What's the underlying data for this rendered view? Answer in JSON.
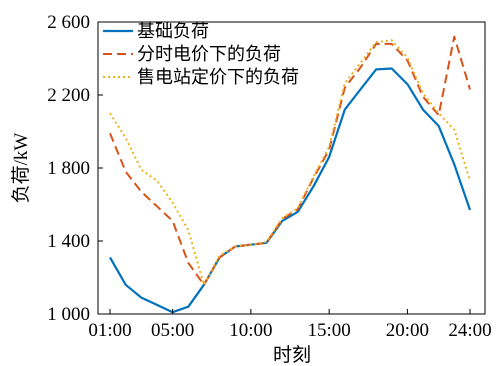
{
  "chart_data": {
    "type": "line",
    "x": [
      "01:00",
      "02:00",
      "03:00",
      "04:00",
      "05:00",
      "06:00",
      "07:00",
      "08:00",
      "09:00",
      "10:00",
      "11:00",
      "12:00",
      "13:00",
      "14:00",
      "15:00",
      "16:00",
      "17:00",
      "18:00",
      "19:00",
      "20:00",
      "21:00",
      "22:00",
      "23:00",
      "24:00"
    ],
    "xticks": [
      "01:00",
      "05:00",
      "10:00",
      "15:00",
      "20:00",
      "24:00"
    ],
    "yticks": [
      1000,
      1400,
      1800,
      2200,
      2600
    ],
    "ytick_labels": [
      "1 000",
      "1 400",
      "1 800",
      "2 200",
      "2 600"
    ],
    "ylim": [
      1000,
      2600
    ],
    "xlabel": "时刻",
    "ylabel": "负荷/kW",
    "legend": "top-left",
    "grid": false,
    "series": [
      {
        "name": "基础负荷",
        "line_style": "solid",
        "color": "#0072BD",
        "values": [
          1310,
          1160,
          1090,
          1050,
          1010,
          1040,
          1160,
          1310,
          1370,
          1380,
          1390,
          1510,
          1560,
          1700,
          1860,
          2120,
          2230,
          2340,
          2345,
          2260,
          2120,
          2030,
          1820,
          1570
        ]
      },
      {
        "name": "分时电价下的负荷",
        "line_style": "dashed",
        "color": "#D95319",
        "values": [
          1990,
          1780,
          1670,
          1590,
          1510,
          1280,
          1160,
          1310,
          1370,
          1380,
          1390,
          1520,
          1575,
          1745,
          1900,
          2240,
          2350,
          2480,
          2480,
          2390,
          2190,
          2090,
          2520,
          2230
        ]
      },
      {
        "name": "售电站定价下的负荷",
        "line_style": "dotted",
        "color": "#EDB120",
        "values": [
          2100,
          1965,
          1790,
          1730,
          1610,
          1460,
          1160,
          1320,
          1370,
          1380,
          1395,
          1525,
          1580,
          1755,
          1915,
          2265,
          2375,
          2490,
          2500,
          2405,
          2210,
          2100,
          2010,
          1730
        ]
      }
    ]
  }
}
